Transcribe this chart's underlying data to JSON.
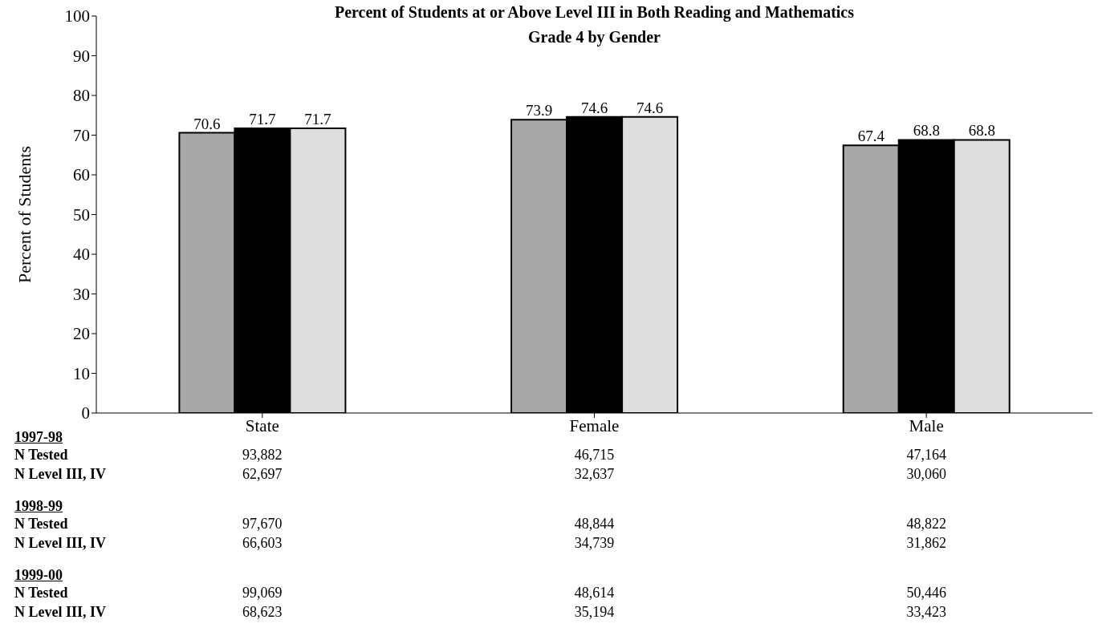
{
  "chart_data": {
    "type": "bar",
    "title": "Percent of Students at or Above Level III in Both Reading and Mathematics",
    "subtitle": "Grade 4 by Gender",
    "ylabel": "Percent of Students",
    "categories": [
      "State",
      "Female",
      "Male"
    ],
    "series": [
      {
        "color": "#a8a8a8",
        "values": [
          70.6,
          73.9,
          67.4
        ]
      },
      {
        "color": "#000000",
        "values": [
          71.7,
          74.6,
          68.8
        ]
      },
      {
        "color": "#dedede",
        "values": [
          71.7,
          74.6,
          68.8
        ]
      }
    ],
    "ylim": [
      0,
      100
    ],
    "yticks": [
      0,
      10,
      20,
      30,
      40,
      50,
      60,
      70,
      80,
      90,
      100
    ],
    "grid": false,
    "legend": false,
    "data_labels": true,
    "annotations": [
      "1997-98",
      "N Tested",
      "93,882",
      "46,715",
      "47,164",
      "N Level III, IV",
      "62,697",
      "32,637",
      "30,060",
      "1998-99",
      "N Tested",
      "97,670",
      "48,844",
      "48,822",
      "N Level III, IV",
      "66,603",
      "34,739",
      "31,862",
      "1999-00",
      "N Tested",
      "99,069",
      "48,614",
      "50,446",
      "N Level III, IV",
      "68,623",
      "35,194",
      "33,423"
    ]
  }
}
